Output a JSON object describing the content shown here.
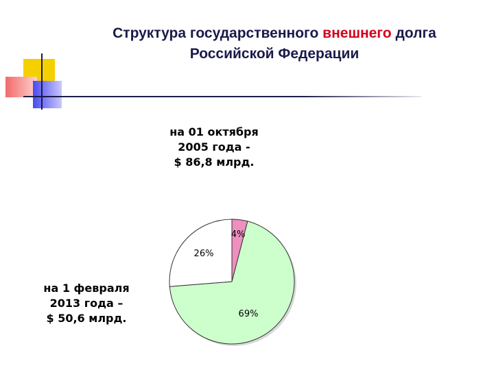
{
  "title": {
    "line1_part1": "Структура государственного ",
    "line1_accent": "внешнего",
    "line1_part2": " долга",
    "line2": "Российской Федерации"
  },
  "captions": {
    "top_line1": "на 01 октября",
    "top_line2": "2005 года -",
    "top_line3": "$ 86,8 млрд.",
    "bottom_line1": "на 1 февраля",
    "bottom_line2": "2013 года –",
    "bottom_line3": "$ 50,6 млрд."
  },
  "colors": {
    "title": "#1a1a4a",
    "accent": "#d4001a",
    "deco_yellow": "#f5d000",
    "deco_red": "#f26a6a",
    "deco_blue": "#4a4aee",
    "deco_line": "#1a1a4a"
  },
  "chart_data": {
    "type": "pie",
    "title": "",
    "slices": [
      {
        "label": "4%",
        "value": 4,
        "color": "#ee8fbf"
      },
      {
        "label": "69%",
        "value": 69,
        "color": "#ccffcc"
      },
      {
        "label": "26%",
        "value": 26,
        "color": "#ffffff"
      }
    ]
  }
}
